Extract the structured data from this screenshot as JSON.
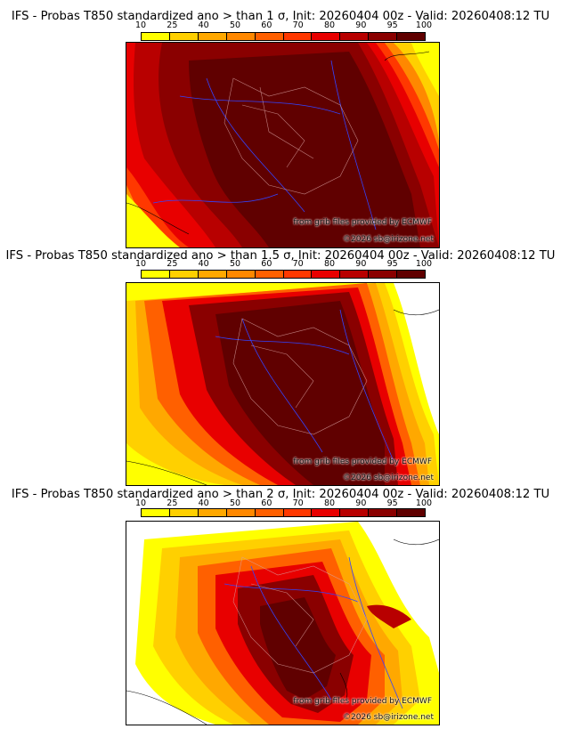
{
  "colors": [
    "#ffff00",
    "#ffd000",
    "#ffa800",
    "#ff8800",
    "#ff6000",
    "#ff3800",
    "#e80000",
    "#b80000",
    "#8a0000",
    "#600000"
  ],
  "colorbar_ticks": [
    "10",
    "25",
    "40",
    "50",
    "60",
    "70",
    "80",
    "90",
    "95",
    "100"
  ],
  "panels": [
    {
      "title": "IFS - Probas T850  standardized ano > than 1 σ, Init: 20260404 00z - Valid: 20260408:12 TU",
      "credit_grib": "from grib files provided by ECMWF",
      "credit_site": "©2026 sb@irizone.net"
    },
    {
      "title": "IFS - Probas T850  standardized ano > than 1.5 σ, Init: 20260404 00z - Valid: 20260408:12 TU",
      "credit_grib": "from grib files provided by ECMWF",
      "credit_site": "©2026 sb@irizone.net"
    },
    {
      "title": "IFS - Probas T850  standardized ano > than 2 σ, Init: 20260404 00z - Valid: 20260408:12 TU",
      "credit_grib": "from grib files provided by ECMWF",
      "credit_site": "©2026 sb@irizone.net"
    }
  ]
}
